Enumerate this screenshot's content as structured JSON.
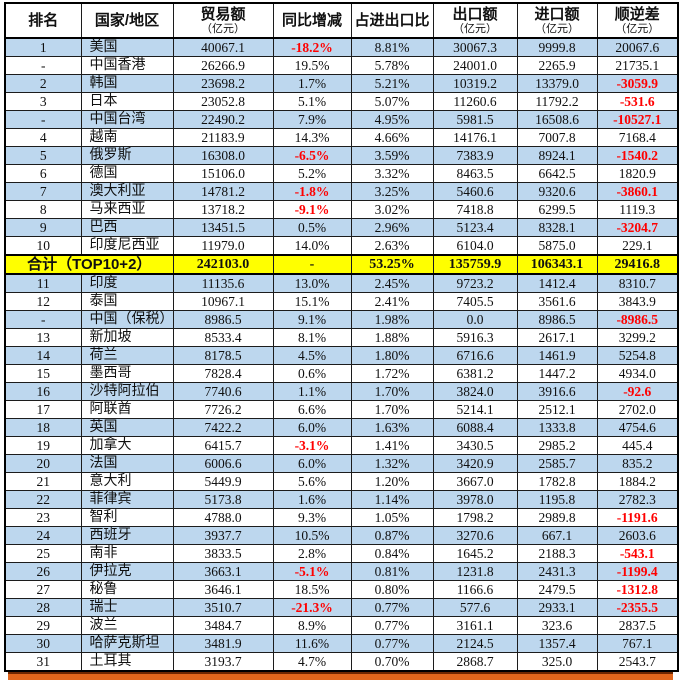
{
  "colors": {
    "row_band_blue": "#BDD7EE",
    "total_row_yellow": "#FFFF00",
    "negative_red": "#FF0000",
    "bottom_bar_orange": "#E1661C"
  },
  "table": {
    "columns": [
      {
        "key": "rank",
        "label": "排名",
        "sub": ""
      },
      {
        "key": "region",
        "label": "国家/地区",
        "sub": ""
      },
      {
        "key": "trade",
        "label": "贸易额",
        "sub": "（亿元）"
      },
      {
        "key": "yoy",
        "label": "同比增减",
        "sub": ""
      },
      {
        "key": "share",
        "label": "占进出口比",
        "sub": ""
      },
      {
        "key": "exp",
        "label": "出口额",
        "sub": "（亿元）"
      },
      {
        "key": "imp",
        "label": "进口额",
        "sub": "（亿元）"
      },
      {
        "key": "bal",
        "label": "顺逆差",
        "sub": "（亿元）"
      }
    ],
    "rows": [
      {
        "rank": "1",
        "region": "美国",
        "trade": "40067.1",
        "yoy": "-18.2%",
        "share": "8.81%",
        "exp": "30067.3",
        "imp": "9999.8",
        "bal": "20067.6",
        "shade": "blue"
      },
      {
        "rank": "-",
        "region": "中国香港",
        "trade": "26266.9",
        "yoy": "19.5%",
        "share": "5.78%",
        "exp": "24001.0",
        "imp": "2265.9",
        "bal": "21735.1",
        "shade": ""
      },
      {
        "rank": "2",
        "region": "韩国",
        "trade": "23698.2",
        "yoy": "1.7%",
        "share": "5.21%",
        "exp": "10319.2",
        "imp": "13379.0",
        "bal": "-3059.9",
        "shade": "blue"
      },
      {
        "rank": "3",
        "region": "日本",
        "trade": "23052.8",
        "yoy": "5.1%",
        "share": "5.07%",
        "exp": "11260.6",
        "imp": "11792.2",
        "bal": "-531.6",
        "shade": ""
      },
      {
        "rank": "-",
        "region": "中国台湾",
        "trade": "22490.2",
        "yoy": "7.9%",
        "share": "4.95%",
        "exp": "5981.5",
        "imp": "16508.6",
        "bal": "-10527.1",
        "shade": "blue"
      },
      {
        "rank": "4",
        "region": "越南",
        "trade": "21183.9",
        "yoy": "14.3%",
        "share": "4.66%",
        "exp": "14176.1",
        "imp": "7007.8",
        "bal": "7168.4",
        "shade": ""
      },
      {
        "rank": "5",
        "region": "俄罗斯",
        "trade": "16308.0",
        "yoy": "-6.5%",
        "share": "3.59%",
        "exp": "7383.9",
        "imp": "8924.1",
        "bal": "-1540.2",
        "shade": "blue"
      },
      {
        "rank": "6",
        "region": "德国",
        "trade": "15106.0",
        "yoy": "5.2%",
        "share": "3.32%",
        "exp": "8463.5",
        "imp": "6642.5",
        "bal": "1820.9",
        "shade": ""
      },
      {
        "rank": "7",
        "region": "澳大利亚",
        "trade": "14781.2",
        "yoy": "-1.8%",
        "share": "3.25%",
        "exp": "5460.6",
        "imp": "9320.6",
        "bal": "-3860.1",
        "shade": "blue"
      },
      {
        "rank": "8",
        "region": "马来西亚",
        "trade": "13718.2",
        "yoy": "-9.1%",
        "share": "3.02%",
        "exp": "7418.8",
        "imp": "6299.5",
        "bal": "1119.3",
        "shade": ""
      },
      {
        "rank": "9",
        "region": "巴西",
        "trade": "13451.5",
        "yoy": "0.5%",
        "share": "2.96%",
        "exp": "5123.4",
        "imp": "8328.1",
        "bal": "-3204.7",
        "shade": "blue"
      },
      {
        "rank": "10",
        "region": "印度尼西亚",
        "trade": "11979.0",
        "yoy": "14.0%",
        "share": "2.63%",
        "exp": "6104.0",
        "imp": "5875.0",
        "bal": "229.1",
        "shade": ""
      },
      {
        "total": true,
        "region": "合计（TOP10+2）",
        "trade": "242103.0",
        "yoy": "-",
        "share": "53.25%",
        "exp": "135759.9",
        "imp": "106343.1",
        "bal": "29416.8",
        "shade": "yellow"
      },
      {
        "rank": "11",
        "region": "印度",
        "trade": "11135.6",
        "yoy": "13.0%",
        "share": "2.45%",
        "exp": "9723.2",
        "imp": "1412.4",
        "bal": "8310.7",
        "shade": "blue"
      },
      {
        "rank": "12",
        "region": "泰国",
        "trade": "10967.1",
        "yoy": "15.1%",
        "share": "2.41%",
        "exp": "7405.5",
        "imp": "3561.6",
        "bal": "3843.9",
        "shade": ""
      },
      {
        "rank": "-",
        "region": "中国（保税）",
        "trade": "8986.5",
        "yoy": "9.1%",
        "share": "1.98%",
        "exp": "0.0",
        "imp": "8986.5",
        "bal": "-8986.5",
        "shade": "blue"
      },
      {
        "rank": "13",
        "region": "新加坡",
        "trade": "8533.4",
        "yoy": "8.1%",
        "share": "1.88%",
        "exp": "5916.3",
        "imp": "2617.1",
        "bal": "3299.2",
        "shade": ""
      },
      {
        "rank": "14",
        "region": "荷兰",
        "trade": "8178.5",
        "yoy": "4.5%",
        "share": "1.80%",
        "exp": "6716.6",
        "imp": "1461.9",
        "bal": "5254.8",
        "shade": "blue"
      },
      {
        "rank": "15",
        "region": "墨西哥",
        "trade": "7828.4",
        "yoy": "0.6%",
        "share": "1.72%",
        "exp": "6381.2",
        "imp": "1447.2",
        "bal": "4934.0",
        "shade": ""
      },
      {
        "rank": "16",
        "region": "沙特阿拉伯",
        "trade": "7740.6",
        "yoy": "1.1%",
        "share": "1.70%",
        "exp": "3824.0",
        "imp": "3916.6",
        "bal": "-92.6",
        "shade": "blue"
      },
      {
        "rank": "17",
        "region": "阿联酋",
        "trade": "7726.2",
        "yoy": "6.6%",
        "share": "1.70%",
        "exp": "5214.1",
        "imp": "2512.1",
        "bal": "2702.0",
        "shade": ""
      },
      {
        "rank": "18",
        "region": "英国",
        "trade": "7422.2",
        "yoy": "6.0%",
        "share": "1.63%",
        "exp": "6088.4",
        "imp": "1333.8",
        "bal": "4754.6",
        "shade": "blue"
      },
      {
        "rank": "19",
        "region": "加拿大",
        "trade": "6415.7",
        "yoy": "-3.1%",
        "share": "1.41%",
        "exp": "3430.5",
        "imp": "2985.2",
        "bal": "445.4",
        "shade": ""
      },
      {
        "rank": "20",
        "region": "法国",
        "trade": "6006.6",
        "yoy": "6.0%",
        "share": "1.32%",
        "exp": "3420.9",
        "imp": "2585.7",
        "bal": "835.2",
        "shade": "blue"
      },
      {
        "rank": "21",
        "region": "意大利",
        "trade": "5449.9",
        "yoy": "5.6%",
        "share": "1.20%",
        "exp": "3667.0",
        "imp": "1782.8",
        "bal": "1884.2",
        "shade": ""
      },
      {
        "rank": "22",
        "region": "菲律宾",
        "trade": "5173.8",
        "yoy": "1.6%",
        "share": "1.14%",
        "exp": "3978.0",
        "imp": "1195.8",
        "bal": "2782.3",
        "shade": "blue"
      },
      {
        "rank": "23",
        "region": "智利",
        "trade": "4788.0",
        "yoy": "9.3%",
        "share": "1.05%",
        "exp": "1798.2",
        "imp": "2989.8",
        "bal": "-1191.6",
        "shade": ""
      },
      {
        "rank": "24",
        "region": "西班牙",
        "trade": "3937.7",
        "yoy": "10.5%",
        "share": "0.87%",
        "exp": "3270.6",
        "imp": "667.1",
        "bal": "2603.6",
        "shade": "blue"
      },
      {
        "rank": "25",
        "region": "南非",
        "trade": "3833.5",
        "yoy": "2.8%",
        "share": "0.84%",
        "exp": "1645.2",
        "imp": "2188.3",
        "bal": "-543.1",
        "shade": ""
      },
      {
        "rank": "26",
        "region": "伊拉克",
        "trade": "3663.1",
        "yoy": "-5.1%",
        "share": "0.81%",
        "exp": "1231.8",
        "imp": "2431.3",
        "bal": "-1199.4",
        "shade": "blue"
      },
      {
        "rank": "27",
        "region": "秘鲁",
        "trade": "3646.1",
        "yoy": "18.5%",
        "share": "0.80%",
        "exp": "1166.6",
        "imp": "2479.5",
        "bal": "-1312.8",
        "shade": ""
      },
      {
        "rank": "28",
        "region": "瑞士",
        "trade": "3510.7",
        "yoy": "-21.3%",
        "share": "0.77%",
        "exp": "577.6",
        "imp": "2933.1",
        "bal": "-2355.5",
        "shade": "blue"
      },
      {
        "rank": "29",
        "region": "波兰",
        "trade": "3484.7",
        "yoy": "8.9%",
        "share": "0.77%",
        "exp": "3161.1",
        "imp": "323.6",
        "bal": "2837.5",
        "shade": ""
      },
      {
        "rank": "30",
        "region": "哈萨克斯坦",
        "trade": "3481.9",
        "yoy": "11.6%",
        "share": "0.77%",
        "exp": "2124.5",
        "imp": "1357.4",
        "bal": "767.1",
        "shade": "blue"
      },
      {
        "rank": "31",
        "region": "土耳其",
        "trade": "3193.7",
        "yoy": "4.7%",
        "share": "0.70%",
        "exp": "2868.7",
        "imp": "325.0",
        "bal": "2543.7",
        "shade": ""
      }
    ]
  }
}
